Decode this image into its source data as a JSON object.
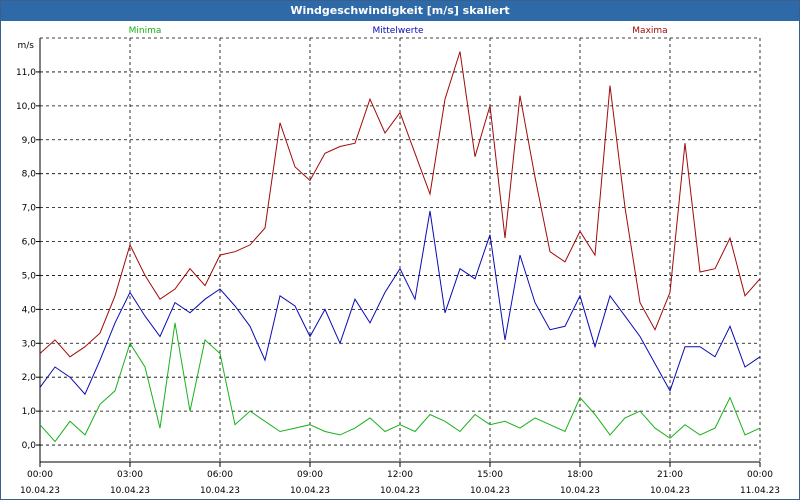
{
  "window": {
    "title": "Windgeschwindigkeit [m/s] skaliert"
  },
  "colors": {
    "minima": "#1ab01a",
    "mittel": "#0a0ab4",
    "maxima": "#a00a0a",
    "grid": "#000000"
  },
  "chart_data": {
    "type": "line",
    "title": "Windgeschwindigkeit [m/s] skaliert",
    "ylabel": "m/s",
    "ylim": [
      -0.5,
      12.0
    ],
    "yticks": [
      "0,0",
      "1,0",
      "2,0",
      "3,0",
      "4,0",
      "5,0",
      "6,0",
      "7,0",
      "8,0",
      "9,0",
      "10,0",
      "11,0"
    ],
    "ytick_values": [
      0,
      1,
      2,
      3,
      4,
      5,
      6,
      7,
      8,
      9,
      10,
      11
    ],
    "xlim": [
      0,
      24
    ],
    "xticks": [
      {
        "x": 0,
        "time": "00:00",
        "date": "10.04.23"
      },
      {
        "x": 3,
        "time": "03:00",
        "date": "10.04.23"
      },
      {
        "x": 6,
        "time": "06:00",
        "date": "10.04.23"
      },
      {
        "x": 9,
        "time": "09:00",
        "date": "10.04.23"
      },
      {
        "x": 12,
        "time": "12:00",
        "date": "10.04.23"
      },
      {
        "x": 15,
        "time": "15:00",
        "date": "10.04.23"
      },
      {
        "x": 18,
        "time": "18:00",
        "date": "10.04.23"
      },
      {
        "x": 21,
        "time": "21:00",
        "date": "10.04.23"
      },
      {
        "x": 24,
        "time": "00:00",
        "date": "11.04.23"
      }
    ],
    "legend": [
      "Minima",
      "Mittelwerte",
      "Maxima"
    ],
    "x": [
      0,
      0.5,
      1,
      1.5,
      2,
      2.5,
      3,
      3.5,
      4,
      4.5,
      5,
      5.5,
      6,
      6.5,
      7,
      7.5,
      8,
      8.5,
      9,
      9.5,
      10,
      10.5,
      11,
      11.5,
      12,
      12.5,
      13,
      13.5,
      14,
      14.5,
      15,
      15.5,
      16,
      16.5,
      17,
      17.5,
      18,
      18.5,
      19,
      19.5,
      20,
      20.5,
      21,
      21.5,
      22,
      22.5,
      23,
      23.5,
      24
    ],
    "series": [
      {
        "name": "Minima",
        "values": [
          0.6,
          0.1,
          0.7,
          0.3,
          1.2,
          1.6,
          3.0,
          2.3,
          0.5,
          3.6,
          1.0,
          3.1,
          2.7,
          0.6,
          1.0,
          0.7,
          0.4,
          0.5,
          0.6,
          0.4,
          0.3,
          0.5,
          0.8,
          0.4,
          0.6,
          0.4,
          0.9,
          0.7,
          0.4,
          0.9,
          0.6,
          0.7,
          0.5,
          0.8,
          0.6,
          0.4,
          1.4,
          0.9,
          0.3,
          0.8,
          1.0,
          0.5,
          0.2,
          0.6,
          0.3,
          0.5,
          1.4,
          0.3,
          0.5
        ]
      },
      {
        "name": "Mittelwerte",
        "values": [
          1.7,
          2.3,
          2.0,
          1.5,
          2.5,
          3.6,
          4.5,
          3.8,
          3.2,
          4.2,
          3.9,
          4.3,
          4.6,
          4.1,
          3.5,
          2.5,
          4.4,
          4.1,
          3.2,
          4.0,
          3.0,
          4.3,
          3.6,
          4.5,
          5.2,
          4.3,
          6.9,
          3.9,
          5.2,
          4.9,
          6.2,
          3.1,
          5.6,
          4.2,
          3.4,
          3.5,
          4.4,
          2.9,
          4.4,
          3.8,
          3.2,
          2.4,
          1.6,
          2.9,
          2.9,
          2.6,
          3.5,
          2.3,
          2.6
        ]
      },
      {
        "name": "Maxima",
        "values": [
          2.7,
          3.1,
          2.6,
          2.9,
          3.3,
          4.4,
          5.9,
          5.0,
          4.3,
          4.6,
          5.2,
          4.7,
          5.6,
          5.7,
          5.9,
          6.4,
          9.5,
          8.2,
          7.8,
          8.6,
          8.8,
          8.9,
          10.2,
          9.2,
          9.8,
          8.6,
          7.4,
          10.2,
          11.6,
          8.5,
          10.0,
          6.1,
          10.3,
          7.9,
          5.7,
          5.4,
          6.3,
          5.6,
          10.6,
          7.0,
          4.2,
          3.4,
          4.5,
          8.9,
          5.1,
          5.2,
          6.1,
          4.4,
          4.9
        ]
      }
    ]
  }
}
